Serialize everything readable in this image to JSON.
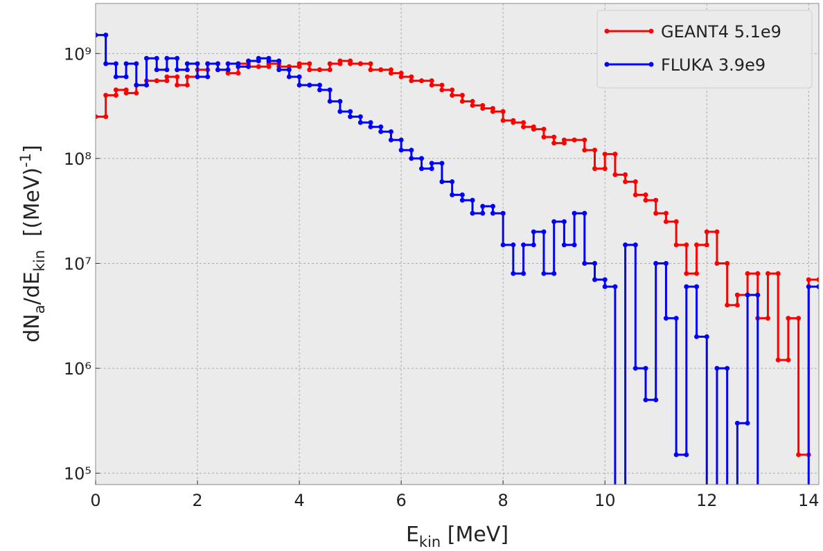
{
  "chart_data": {
    "type": "histogram",
    "xlabel": [
      "E",
      "kin",
      " [MeV]"
    ],
    "ylabel": [
      "dN",
      "a",
      "/dE",
      "kin",
      "  [(MeV)",
      "-1",
      "]"
    ],
    "yscale": "log",
    "grid": true,
    "legend": "upper right",
    "bins": [
      0,
      0.2,
      0.4,
      0.6,
      0.8,
      1,
      1.2,
      1.4,
      1.6,
      1.8,
      2,
      2.2,
      2.4,
      2.6,
      2.8,
      3,
      3.2,
      3.4,
      3.6,
      3.8,
      4,
      4.2,
      4.4,
      4.6,
      4.8,
      5,
      5.2,
      5.4,
      5.6,
      5.8,
      6,
      6.2,
      6.4,
      6.6,
      6.8,
      7,
      7.2,
      7.4,
      7.6,
      7.8,
      8,
      8.2,
      8.4,
      8.6,
      8.8,
      9,
      9.2,
      9.4,
      9.6,
      9.8,
      10,
      10.2,
      10.4,
      10.6,
      10.8,
      11,
      11.2,
      11.4,
      11.6,
      11.8,
      12,
      12.2,
      12.4,
      12.6,
      12.8,
      13,
      13.2,
      13.4,
      13.6,
      13.8,
      14,
      14.2
    ],
    "series": [
      {
        "name": "GEANT4 5.1e9",
        "color": "#ff0000",
        "values": [
          250000000,
          400000000,
          450000000,
          420000000,
          500000000,
          550000000,
          550000000,
          600000000,
          500000000,
          600000000,
          700000000,
          800000000,
          700000000,
          650000000,
          800000000,
          750000000,
          750000000,
          800000000,
          750000000,
          750000000,
          800000000,
          700000000,
          700000000,
          800000000,
          850000000,
          800000000,
          800000000,
          700000000,
          700000000,
          650000000,
          600000000,
          550000000,
          550000000,
          500000000,
          450000000,
          400000000,
          350000000,
          320000000,
          300000000,
          280000000,
          230000000,
          220000000,
          200000000,
          190000000,
          160000000,
          140000000,
          150000000,
          150000000,
          120000000,
          80000000,
          110000000,
          70000000,
          60000000,
          45000000,
          40000000,
          30000000,
          25000000,
          15000000,
          8000000,
          15000000,
          20000000,
          10000000,
          4000000,
          5000000,
          8000000,
          3000000,
          8000000,
          1200000,
          3000000,
          150000,
          7000000
        ]
      },
      {
        "name": "FLUKA 3.9e9",
        "color": "#0000ff",
        "values": [
          1500000000,
          800000000,
          600000000,
          800000000,
          500000000,
          900000000,
          700000000,
          900000000,
          700000000,
          800000000,
          600000000,
          800000000,
          700000000,
          800000000,
          750000000,
          850000000,
          900000000,
          850000000,
          700000000,
          600000000,
          500000000,
          500000000,
          450000000,
          350000000,
          280000000,
          250000000,
          220000000,
          200000000,
          180000000,
          150000000,
          120000000,
          100000000,
          80000000,
          90000000,
          60000000,
          45000000,
          40000000,
          30000000,
          35000000,
          30000000,
          15000000,
          8000000,
          15000000,
          20000000,
          8000000,
          25000000,
          15000000,
          30000000,
          10000000,
          7000000,
          6000000,
          50000,
          15000000,
          1000000,
          500000,
          10000000,
          3000000,
          150000,
          6000000,
          2000000,
          50000,
          1000000,
          50000,
          300000,
          5000000,
          50000,
          50000,
          50000,
          50000,
          50000,
          6000000
        ]
      }
    ],
    "xlim": [
      0,
      14.2
    ],
    "xticks": [
      0,
      2,
      4,
      6,
      8,
      10,
      12,
      14
    ],
    "ylim": [
      78000,
      3000000000
    ],
    "yticks": [
      {
        "value": 100000,
        "label": "10⁵"
      },
      {
        "value": 1000000,
        "label": "10⁶"
      },
      {
        "value": 10000000,
        "label": "10⁷"
      },
      {
        "value": 100000000,
        "label": "10⁸"
      },
      {
        "value": 1000000000,
        "label": "10⁹"
      }
    ]
  }
}
